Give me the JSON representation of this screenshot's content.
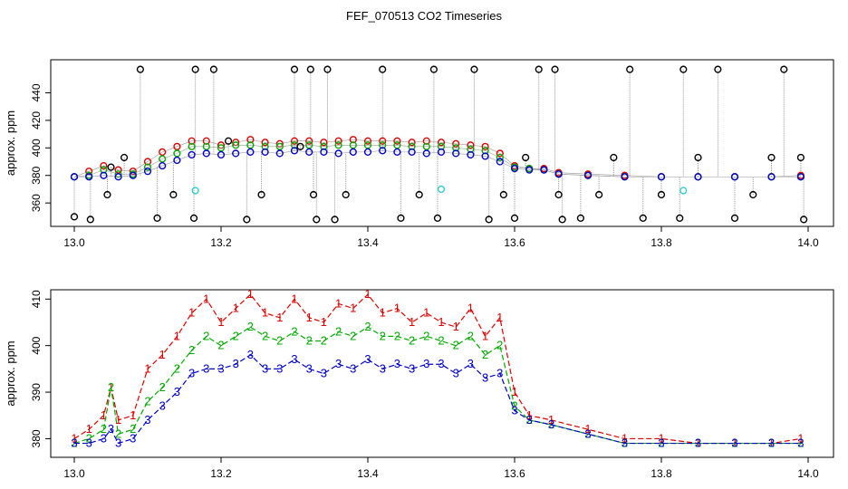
{
  "title": "FEF_070513  CO2 Timeseries",
  "chart_data": [
    {
      "type": "scatter",
      "title": "",
      "xlabel": "",
      "ylabel": "approx. ppm",
      "xlim": [
        13.0,
        14.0
      ],
      "ylim": [
        343,
        464
      ],
      "xticks": [
        13.0,
        13.2,
        13.4,
        13.6,
        13.8,
        14.0
      ],
      "xtick_labels": [
        "13.0",
        "13.2",
        "13.4",
        "13.6",
        "13.8",
        "14.0"
      ],
      "yticks": [
        360,
        380,
        400,
        420,
        440
      ],
      "ytick_labels": [
        "360",
        "380",
        "400",
        "420",
        "440"
      ],
      "grid": false,
      "legend": "none",
      "series": [
        {
          "color": "#dd0000",
          "marker": "circle",
          "x": [
            13.0,
            13.02,
            13.04,
            13.06,
            13.08,
            13.1,
            13.12,
            13.14,
            13.16,
            13.18,
            13.2,
            13.22,
            13.24,
            13.26,
            13.28,
            13.3,
            13.32,
            13.34,
            13.36,
            13.38,
            13.4,
            13.42,
            13.44,
            13.46,
            13.48,
            13.5,
            13.52,
            13.54,
            13.56,
            13.58,
            13.6,
            13.62,
            13.64,
            13.66,
            13.7,
            13.75,
            13.8,
            13.85,
            13.9,
            13.95,
            13.99
          ],
          "y": [
            379,
            383,
            387,
            384,
            383,
            390,
            397,
            401,
            405,
            405,
            402,
            404,
            406,
            404,
            403,
            405,
            405,
            404,
            405,
            406,
            405,
            405,
            405,
            404,
            405,
            404,
            403,
            402,
            401,
            396,
            387,
            385,
            385,
            382,
            381,
            380,
            379,
            379,
            379,
            379,
            380
          ]
        },
        {
          "color": "#00aa00",
          "marker": "circle",
          "x": [
            13.0,
            13.02,
            13.04,
            13.06,
            13.08,
            13.1,
            13.12,
            13.14,
            13.16,
            13.18,
            13.2,
            13.22,
            13.24,
            13.26,
            13.28,
            13.3,
            13.32,
            13.34,
            13.36,
            13.38,
            13.4,
            13.42,
            13.44,
            13.46,
            13.48,
            13.5,
            13.52,
            13.54,
            13.56,
            13.58,
            13.6,
            13.62,
            13.64,
            13.66,
            13.7,
            13.75,
            13.8,
            13.85,
            13.9,
            13.95,
            13.99
          ],
          "y": [
            379,
            380,
            384,
            381,
            381,
            386,
            392,
            396,
            401,
            401,
            400,
            402,
            402,
            401,
            401,
            402,
            402,
            401,
            402,
            402,
            402,
            402,
            402,
            401,
            401,
            401,
            400,
            399,
            398,
            393,
            386,
            385,
            384,
            381,
            380,
            379,
            379,
            379,
            379,
            379,
            379
          ]
        },
        {
          "color": "#0000cc",
          "marker": "circle",
          "x": [
            13.0,
            13.02,
            13.04,
            13.06,
            13.08,
            13.1,
            13.12,
            13.14,
            13.16,
            13.18,
            13.2,
            13.22,
            13.24,
            13.26,
            13.28,
            13.3,
            13.32,
            13.34,
            13.36,
            13.38,
            13.4,
            13.42,
            13.44,
            13.46,
            13.48,
            13.5,
            13.52,
            13.54,
            13.56,
            13.58,
            13.6,
            13.62,
            13.64,
            13.66,
            13.7,
            13.75,
            13.8,
            13.85,
            13.9,
            13.95,
            13.99
          ],
          "y": [
            379,
            379,
            380,
            379,
            380,
            383,
            387,
            391,
            395,
            396,
            395,
            396,
            397,
            397,
            396,
            398,
            397,
            397,
            396,
            397,
            397,
            398,
            397,
            397,
            396,
            397,
            396,
            395,
            394,
            390,
            385,
            384,
            384,
            381,
            380,
            379,
            379,
            379,
            379,
            379,
            379
          ]
        },
        {
          "color": "#000000",
          "marker": "circle",
          "x": [
            13.0,
            13.022,
            13.045,
            13.05,
            13.068,
            13.09,
            13.113,
            13.135,
            13.163,
            13.165,
            13.19,
            13.21,
            13.235,
            13.255,
            13.3,
            13.308,
            13.322,
            13.326,
            13.33,
            13.345,
            13.355,
            13.37,
            13.42,
            13.445,
            13.47,
            13.49,
            13.495,
            13.545,
            13.565,
            13.585,
            13.6,
            13.615,
            13.633,
            13.655,
            13.66,
            13.665,
            13.69,
            13.715,
            13.735,
            13.757,
            13.775,
            13.8,
            13.825,
            13.83,
            13.85,
            13.877,
            13.9,
            13.925,
            13.95,
            13.967,
            13.99,
            13.994
          ],
          "y": [
            350,
            348,
            366,
            386,
            393,
            457,
            349,
            366,
            349,
            457,
            457,
            405,
            348,
            366,
            457,
            401,
            457,
            366,
            348,
            457,
            348,
            366,
            457,
            349,
            366,
            457,
            349,
            457,
            348,
            366,
            349,
            393,
            457,
            457,
            366,
            348,
            349,
            366,
            393,
            457,
            349,
            366,
            349,
            457,
            393,
            457,
            349,
            366,
            393,
            457,
            393,
            348
          ]
        },
        {
          "color": "#33cccc",
          "marker": "circle",
          "x": [
            13.165,
            13.5,
            13.83
          ],
          "y": [
            369,
            370,
            369
          ]
        }
      ]
    },
    {
      "type": "line",
      "title": "",
      "xlabel": "",
      "ylabel": "approx. ppm",
      "xlim": [
        13.0,
        14.0
      ],
      "ylim": [
        376,
        412
      ],
      "xticks": [
        13.0,
        13.2,
        13.4,
        13.6,
        13.8,
        14.0
      ],
      "xtick_labels": [
        "13.0",
        "13.2",
        "13.4",
        "13.6",
        "13.8",
        "14.0"
      ],
      "yticks": [
        380,
        390,
        400,
        410
      ],
      "ytick_labels": [
        "380",
        "390",
        "400",
        "410"
      ],
      "grid": false,
      "legend": "none",
      "series": [
        {
          "marker_label": "1",
          "color": "#dd0000",
          "x": [
            13.0,
            13.02,
            13.04,
            13.05,
            13.06,
            13.08,
            13.1,
            13.12,
            13.14,
            13.16,
            13.18,
            13.2,
            13.22,
            13.24,
            13.26,
            13.28,
            13.3,
            13.32,
            13.34,
            13.36,
            13.38,
            13.4,
            13.42,
            13.44,
            13.46,
            13.48,
            13.5,
            13.52,
            13.54,
            13.56,
            13.58,
            13.6,
            13.62,
            13.65,
            13.7,
            13.75,
            13.8,
            13.85,
            13.9,
            13.95,
            13.99
          ],
          "y": [
            380,
            382,
            385,
            391,
            384,
            385,
            395,
            398,
            402,
            407,
            410,
            405,
            408,
            411,
            407,
            406,
            410,
            406,
            405,
            409,
            408,
            411,
            407,
            408,
            405,
            407,
            405,
            404,
            408,
            402,
            406,
            390,
            385,
            384,
            382,
            380,
            380,
            379,
            379,
            379,
            380
          ]
        },
        {
          "marker_label": "2",
          "color": "#00aa00",
          "x": [
            13.0,
            13.02,
            13.04,
            13.05,
            13.06,
            13.08,
            13.1,
            13.12,
            13.14,
            13.16,
            13.18,
            13.2,
            13.22,
            13.24,
            13.26,
            13.28,
            13.3,
            13.32,
            13.34,
            13.36,
            13.38,
            13.4,
            13.42,
            13.44,
            13.46,
            13.48,
            13.5,
            13.52,
            13.54,
            13.56,
            13.58,
            13.6,
            13.62,
            13.65,
            13.7,
            13.75,
            13.8,
            13.85,
            13.9,
            13.95,
            13.99
          ],
          "y": [
            379,
            380,
            382,
            391,
            381,
            382,
            388,
            391,
            395,
            399,
            402,
            400,
            402,
            404,
            402,
            401,
            403,
            401,
            401,
            403,
            402,
            404,
            402,
            402,
            401,
            402,
            401,
            400,
            402,
            398,
            400,
            387,
            384,
            383,
            381,
            379,
            379,
            379,
            379,
            379,
            379
          ]
        },
        {
          "marker_label": "3",
          "color": "#0000cc",
          "x": [
            13.0,
            13.02,
            13.04,
            13.05,
            13.06,
            13.08,
            13.1,
            13.12,
            13.14,
            13.16,
            13.18,
            13.2,
            13.22,
            13.24,
            13.26,
            13.28,
            13.3,
            13.32,
            13.34,
            13.36,
            13.38,
            13.4,
            13.42,
            13.44,
            13.46,
            13.48,
            13.5,
            13.52,
            13.54,
            13.56,
            13.58,
            13.6,
            13.62,
            13.65,
            13.7,
            13.75,
            13.8,
            13.85,
            13.9,
            13.95,
            13.99
          ],
          "y": [
            379,
            379,
            380,
            382,
            379,
            380,
            384,
            387,
            390,
            394,
            395,
            395,
            396,
            398,
            395,
            395,
            397,
            395,
            394,
            396,
            395,
            397,
            395,
            396,
            395,
            396,
            396,
            394,
            396,
            393,
            394,
            386,
            384,
            383,
            381,
            379,
            379,
            379,
            379,
            379,
            379
          ]
        }
      ]
    }
  ]
}
